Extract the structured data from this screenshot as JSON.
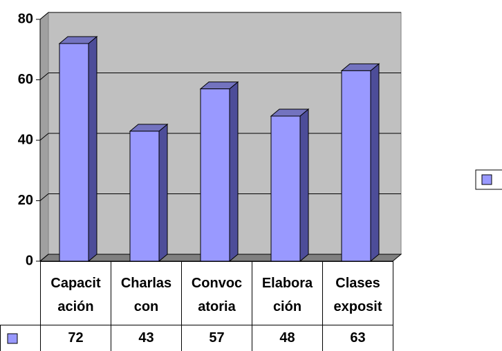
{
  "chart_data": {
    "type": "bar3d",
    "categories": [
      "Capacitación",
      "Charlas con",
      "Convocatoria",
      "Elaboración",
      "Clases exposit"
    ],
    "values": [
      72,
      43,
      57,
      48,
      63
    ],
    "color": "#9999ff",
    "ylim": [
      0,
      80
    ],
    "yticks": [
      0,
      20,
      40,
      60,
      80
    ],
    "grid": true,
    "legend": "right",
    "data_table": true
  }
}
